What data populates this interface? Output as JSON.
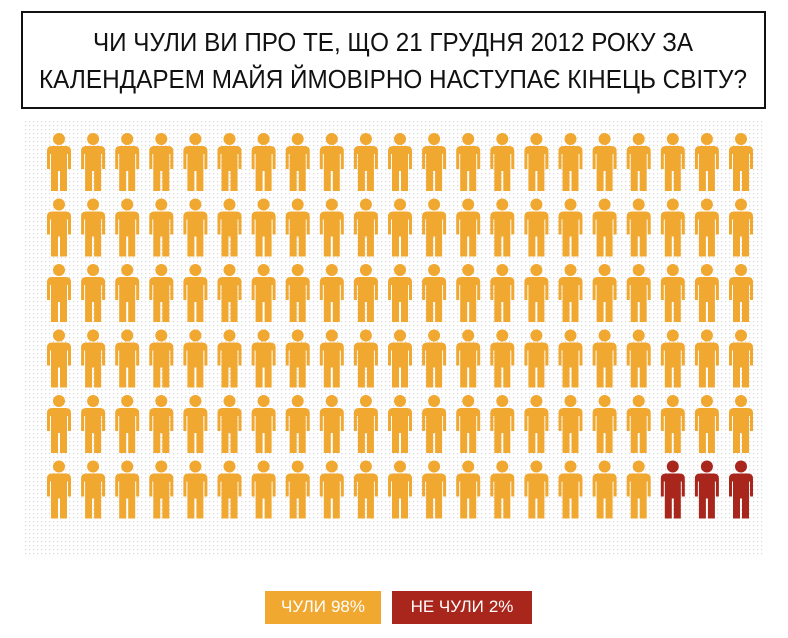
{
  "chart_data": {
    "type": "pictogram",
    "title": [
      "ЧИ ЧУЛИ ВИ ПРО ТЕ, ЩО 21 ГРУДНЯ 2012 РОКУ ЗА",
      "КАЛЕНДАРЕМ МАЙЯ ЙМОВІРНО НАСТУПАЄ КІНЕЦЬ СВІТУ?"
    ],
    "columns": 21,
    "series": [
      {
        "name": "ЧУЛИ",
        "color": "#f0a830",
        "values": [
          98
        ],
        "value_labels": [
          "98%"
        ],
        "icons": 123
      },
      {
        "name": "НЕ ЧУЛИ",
        "color": "#a8261c",
        "values": [
          2
        ],
        "value_labels": [
          "2%"
        ],
        "icons": 3
      }
    ]
  }
}
